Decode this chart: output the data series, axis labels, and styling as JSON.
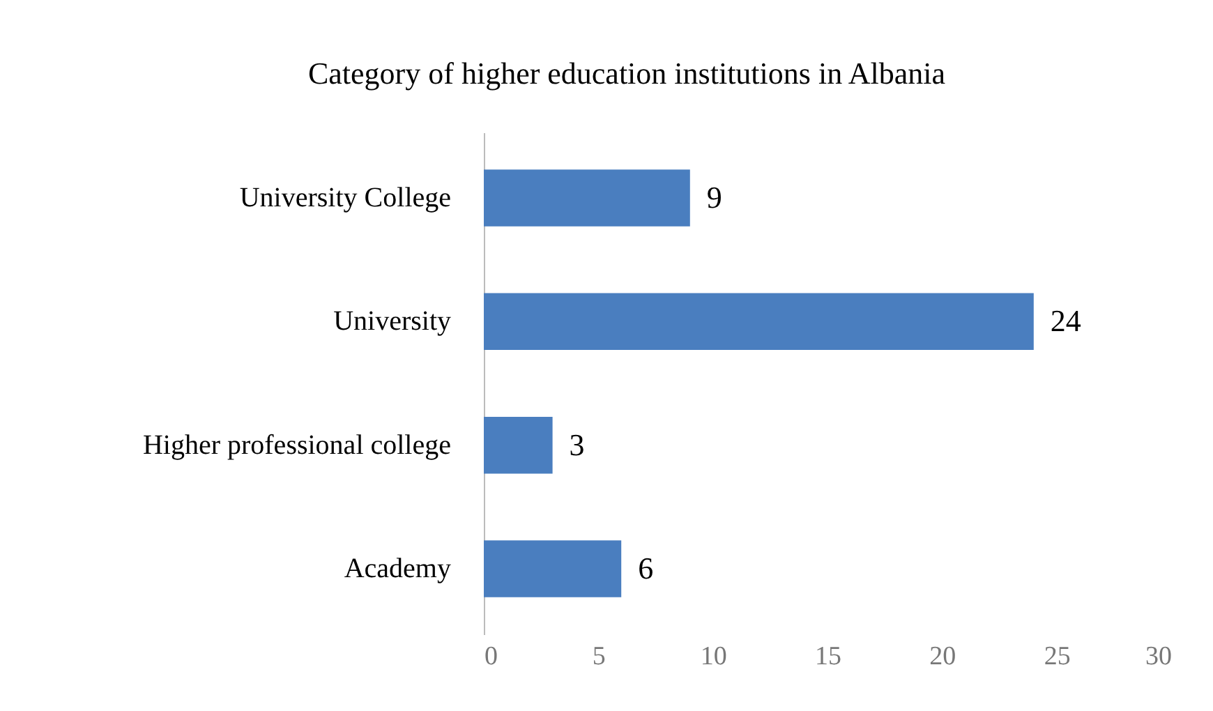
{
  "chart_data": {
    "type": "bar",
    "orientation": "horizontal",
    "title": "Category of higher education institutions in Albania",
    "categories": [
      "University College",
      "University",
      "Higher professional college",
      "Academy"
    ],
    "values": [
      9,
      24,
      3,
      6
    ],
    "color": "#4a7ebf",
    "xlim": [
      0,
      30
    ],
    "xticks": [
      0,
      5,
      10,
      15,
      20,
      25,
      30
    ],
    "grid": false,
    "data_labels": true
  }
}
